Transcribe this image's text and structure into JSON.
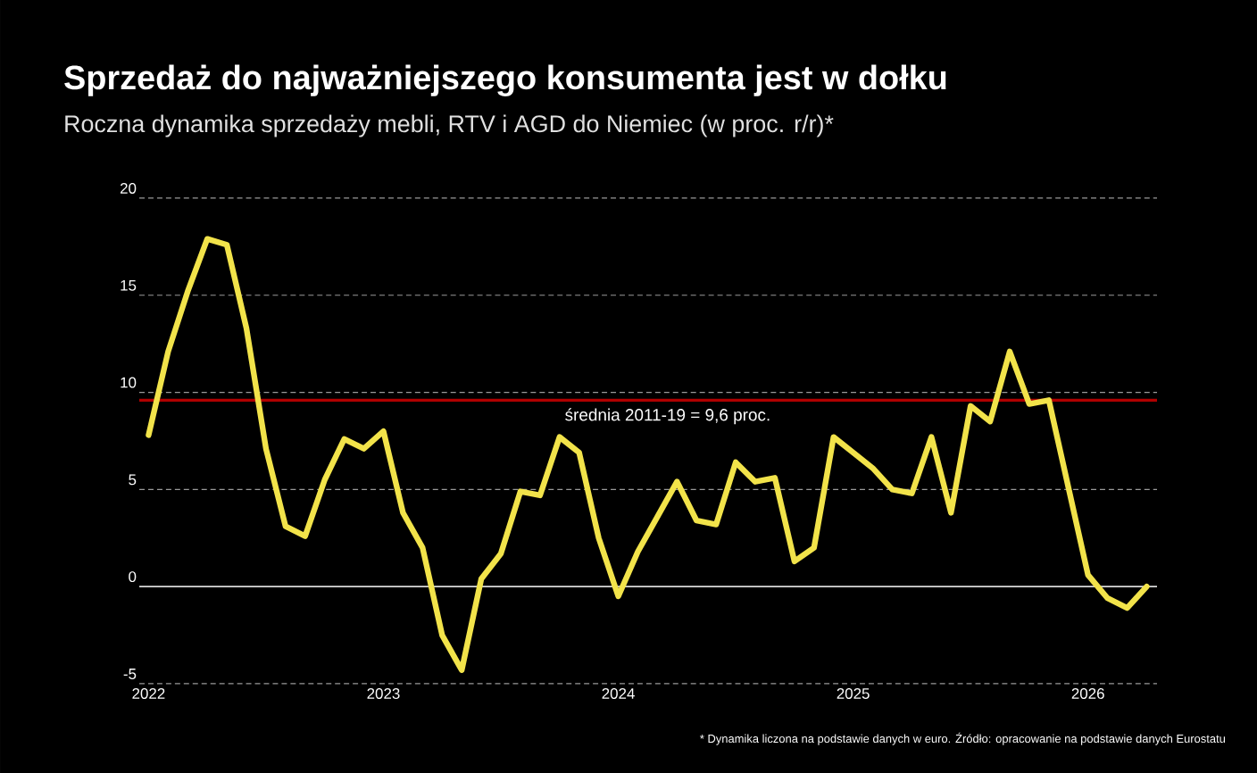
{
  "chart_data": {
    "type": "line",
    "title": "Sprzedaż do najważniejszego konsumenta jest w dołku",
    "subtitle": "Roczna dynamika sprzedaży mebli, RTV i AGD do Niemiec (w proc. r/r)*",
    "x": [
      "2022-01",
      "2022-02",
      "2022-03",
      "2022-04",
      "2022-05",
      "2022-06",
      "2022-07",
      "2022-08",
      "2022-09",
      "2022-10",
      "2022-11",
      "2022-12",
      "2023-01",
      "2023-02",
      "2023-03",
      "2023-04",
      "2023-05",
      "2023-06",
      "2023-07",
      "2023-08",
      "2023-09",
      "2023-10",
      "2023-11",
      "2023-12",
      "2024-01",
      "2024-02",
      "2024-03",
      "2024-04",
      "2024-05",
      "2024-06",
      "2024-07",
      "2024-08",
      "2024-09",
      "2024-10",
      "2024-11",
      "2024-12",
      "2025-01",
      "2025-02",
      "2025-03",
      "2025-04",
      "2025-05",
      "2025-06",
      "2025-07",
      "2025-08",
      "2025-09",
      "2025-10",
      "2025-11",
      "2025-12",
      "2026-01",
      "2026-02",
      "2026-03",
      "2026-04"
    ],
    "series": [
      {
        "color": "#f2e34a",
        "values": [
          7.8,
          12.1,
          15.2,
          17.9,
          17.6,
          13.3,
          7.1,
          3.1,
          2.6,
          5.5,
          7.6,
          7.1,
          8.0,
          3.8,
          2.0,
          -2.5,
          -4.3,
          0.4,
          1.7,
          4.9,
          4.7,
          7.7,
          6.9,
          2.5,
          -0.5,
          1.8,
          3.6,
          5.4,
          3.4,
          3.2,
          6.4,
          5.4,
          5.6,
          1.3,
          2.0,
          7.7,
          6.9,
          6.1,
          5.0,
          4.8,
          7.7,
          3.8,
          9.3,
          8.5,
          12.1,
          9.4,
          9.6,
          5.1,
          0.6,
          -0.6,
          -1.1,
          0.0
        ]
      }
    ],
    "xlim": [
      "2021-12-17",
      "2026-04-17"
    ],
    "xticks": [
      {
        "value": "2022-01",
        "label": "2022"
      },
      {
        "value": "2023-01",
        "label": "2023"
      },
      {
        "value": "2024-01",
        "label": "2024"
      },
      {
        "value": "2025-01",
        "label": "2025"
      },
      {
        "value": "2026-01",
        "label": "2026"
      }
    ],
    "ylim": [
      -5,
      20
    ],
    "yticks": [
      -5,
      0,
      5,
      10,
      15,
      20
    ],
    "grid": "y",
    "marker": "none",
    "ref_lines": [
      {
        "axis": "y",
        "value": 9.6,
        "label": "średnia 2011-19 = 9,6 proc.",
        "color": "#b00000"
      }
    ],
    "annotations": [
      "* Dynamika liczona na podstawie danych w euro. Źródło: opracowanie na podstawie danych Eurostatu"
    ]
  }
}
